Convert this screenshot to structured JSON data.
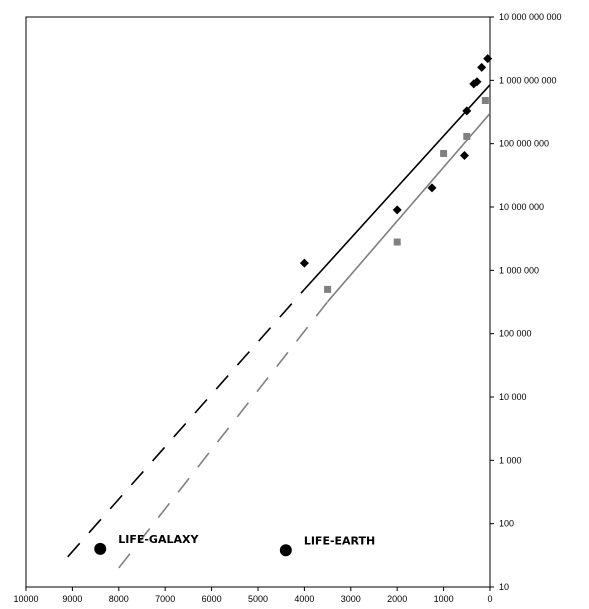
{
  "chart_data": {
    "type": "scatter",
    "title": "",
    "xlabel": "",
    "ylabel": "",
    "x_reversed": true,
    "xlim": [
      0,
      10000
    ],
    "ylim": [
      10,
      10000000000
    ],
    "y_scale": "log",
    "y_axis_side": "right",
    "grid": false,
    "x_ticks": [
      "10000",
      "9000",
      "8000",
      "7000",
      "6000",
      "5000",
      "4000",
      "3000",
      "2000",
      "1000",
      "0"
    ],
    "x_tick_values": [
      10000,
      9000,
      8000,
      7000,
      6000,
      5000,
      4000,
      3000,
      2000,
      1000,
      0
    ],
    "y_ticks": [
      "10",
      "100",
      "1 000",
      "10 000",
      "100 000",
      "1 000 000",
      "10 000 000",
      "100 000 000",
      "1 000 000 000",
      "10 000 000 000"
    ],
    "y_tick_values": [
      10,
      100,
      1000,
      10000,
      100000,
      1000000,
      10000000,
      100000000,
      1000000000,
      10000000000
    ],
    "series": [
      {
        "marker": "diamond",
        "color": "#000000",
        "points": [
          {
            "x": 4000,
            "y": 1300000
          },
          {
            "x": 2000,
            "y": 9000000
          },
          {
            "x": 1250,
            "y": 20000000
          },
          {
            "x": 550,
            "y": 65000000
          },
          {
            "x": 500,
            "y": 330000000
          },
          {
            "x": 350,
            "y": 880000000
          },
          {
            "x": 280,
            "y": 950000000
          },
          {
            "x": 180,
            "y": 1600000000
          },
          {
            "x": 50,
            "y": 2200000000
          }
        ],
        "trend": {
          "x": [
            4000,
            0
          ],
          "y": [
            500000,
            850000000
          ]
        },
        "projection": {
          "x": [
            9100,
            4000
          ],
          "y": [
            30,
            500000
          ]
        }
      },
      {
        "marker": "square",
        "color": "#808080",
        "points": [
          {
            "x": 3500,
            "y": 500000
          },
          {
            "x": 2000,
            "y": 2800000
          },
          {
            "x": 1000,
            "y": 70000000
          },
          {
            "x": 500,
            "y": 130000000
          },
          {
            "x": 100,
            "y": 480000000
          }
        ],
        "trend": {
          "x": [
            3500,
            0
          ],
          "y": [
            320000,
            300000000
          ]
        },
        "projection": {
          "x": [
            8000,
            3500
          ],
          "y": [
            20,
            320000
          ]
        }
      }
    ],
    "annotations": [
      {
        "label": "LIFE-GALAXY",
        "x": 8400,
        "y": 40
      },
      {
        "label": "LIFE-EARTH",
        "x": 4400,
        "y": 38
      }
    ]
  }
}
